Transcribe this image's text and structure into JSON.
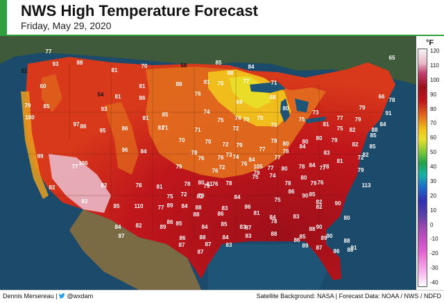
{
  "header": {
    "title": "NWS High Temperature Forecast",
    "date": "Friday, May 29, 2020"
  },
  "legend": {
    "unit": "°F",
    "ticks": [
      "120",
      "110",
      "100",
      "90",
      "80",
      "70",
      "60",
      "50",
      "40",
      "30",
      "20",
      "10",
      "0",
      "-10",
      "-20",
      "-30",
      "-40"
    ]
  },
  "footer": {
    "author": "Dennis Mersereau",
    "separator": "|",
    "handle": "@wxdam",
    "sources": "Satellite Background: NASA | Forecast Data: NOAA / NWS / NDFD"
  },
  "colors": {
    "accent": "#2e9e3f",
    "ocean": "#1b4a6b",
    "hot": "#b3121a",
    "very_hot": "#e9b8c7",
    "warm": "#e56a1a",
    "mild": "#f2c11b",
    "cool": "#e9e02a"
  },
  "temperatures": [
    "77",
    "93",
    "88",
    "81",
    "70",
    "58",
    "85",
    "84",
    "88",
    "77",
    "71",
    "65",
    "51",
    "60",
    "54",
    "81",
    "88",
    "91",
    "70",
    "68",
    "81",
    "86",
    "79",
    "66",
    "79",
    "85",
    "86",
    "93",
    "81",
    "85",
    "76",
    "69",
    "80",
    "79",
    "91",
    "77",
    "78",
    "84",
    "74",
    "71",
    "75",
    "74",
    "100",
    "97",
    "95",
    "86",
    "81",
    "71",
    "72",
    "70",
    "70",
    "73",
    "75",
    "81",
    "82",
    "88",
    "75",
    "73",
    "80",
    "70",
    "72",
    "79",
    "78",
    "84",
    "83",
    "85",
    "82",
    "79",
    "76",
    "73",
    "77",
    "78",
    "80",
    "80",
    "70",
    "96",
    "84",
    "78",
    "72",
    "76",
    "77",
    "80",
    "78",
    "85",
    "99",
    "106",
    "79",
    "76",
    "74",
    "84",
    "77",
    "78",
    "84",
    "81",
    "82",
    "79",
    "75",
    "74",
    "76",
    "78",
    "78",
    "76",
    "105",
    "78",
    "80",
    "79",
    "77",
    "85",
    "113",
    "76",
    "72",
    "82",
    "81",
    "72",
    "82",
    "79",
    "81",
    "90",
    "86",
    "82",
    "78",
    "75",
    "80",
    "79",
    "84",
    "75",
    "82",
    "77",
    "110",
    "79",
    "83",
    "85",
    "77",
    "84",
    "89",
    "88",
    "83",
    "86",
    "81",
    "84",
    "83",
    "90",
    "82",
    "86",
    "85",
    "84",
    "85",
    "83",
    "78",
    "82",
    "80",
    "84",
    "89",
    "88",
    "86",
    "87",
    "88",
    "87",
    "86",
    "88",
    "84",
    "83",
    "88",
    "85",
    "90",
    "87",
    "87",
    "83",
    "86",
    "89",
    "90",
    "88",
    "91",
    "87",
    "89",
    "87",
    "86",
    "88"
  ]
}
